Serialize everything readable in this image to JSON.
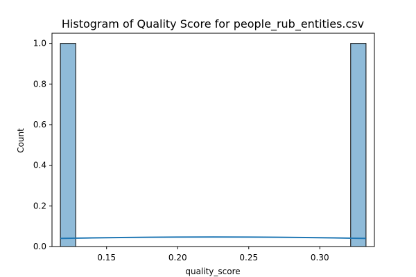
{
  "chart_data": {
    "type": "bar",
    "title": "Histogram of Quality Score for people_rub_entities.csv",
    "xlabel": "quality_score",
    "ylabel": "Count",
    "xlim": [
      0.1116,
      0.3384
    ],
    "ylim": [
      0,
      1.05
    ],
    "xticks": [
      {
        "value": 0.15,
        "label": "0.15"
      },
      {
        "value": 0.2,
        "label": "0.20"
      },
      {
        "value": 0.25,
        "label": "0.25"
      },
      {
        "value": 0.3,
        "label": "0.30"
      }
    ],
    "yticks": [
      {
        "value": 0.0,
        "label": "0.0"
      },
      {
        "value": 0.2,
        "label": "0.2"
      },
      {
        "value": 0.4,
        "label": "0.4"
      },
      {
        "value": 0.6,
        "label": "0.6"
      },
      {
        "value": 0.8,
        "label": "0.8"
      },
      {
        "value": 1.0,
        "label": "1.0"
      }
    ],
    "bins": [
      {
        "x0": 0.1175,
        "x1": 0.1283,
        "count": 1
      },
      {
        "x0": 0.3217,
        "x1": 0.3325,
        "count": 1
      }
    ],
    "kde": {
      "x": [
        0.1175,
        0.14,
        0.16,
        0.18,
        0.2,
        0.225,
        0.25,
        0.27,
        0.29,
        0.31,
        0.3325
      ],
      "y": [
        0.04,
        0.0425,
        0.0445,
        0.0458,
        0.0465,
        0.0467,
        0.0465,
        0.0458,
        0.0445,
        0.0425,
        0.04
      ]
    },
    "grid": false,
    "legend": "none",
    "colors": {
      "bar_fill": "#8fbbd9",
      "bar_edge": "#000000",
      "kde_line": "#1f77b4",
      "axes": "#000000"
    }
  }
}
